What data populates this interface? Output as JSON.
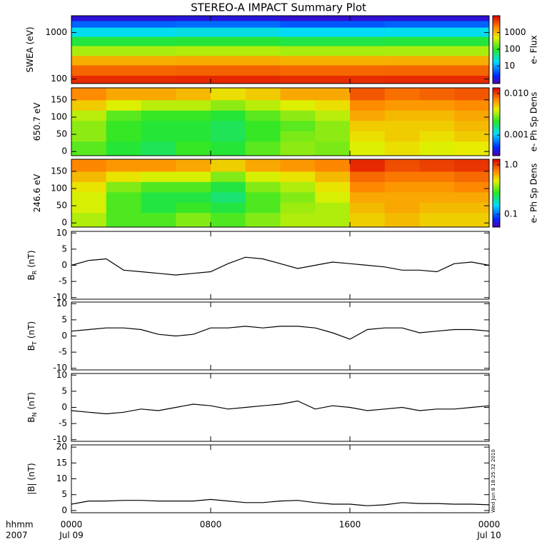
{
  "title": "STEREO-A IMPACT Summary Plot",
  "stamp": "Wed Jun  8 18:25:32 2010",
  "time_axis": {
    "label": "hhmm",
    "year": "2007"
  },
  "chart_data": [
    {
      "type": "heatmap",
      "ylabel": "SWEA (eV)",
      "ylog": true,
      "ylim": [
        80,
        2300
      ],
      "yticks": [
        100,
        1000
      ],
      "xlim": [
        0,
        24
      ],
      "xticks": [
        0,
        8,
        16,
        24
      ],
      "x_edges": [
        0,
        6,
        12,
        18,
        24
      ],
      "y_edges": [
        80,
        120,
        200,
        320,
        520,
        820,
        1300,
        1800,
        2300
      ],
      "z": [
        [
          6000,
          6200,
          5800,
          6000
        ],
        [
          3000,
          3100,
          2900,
          3000
        ],
        [
          1200,
          1250,
          1150,
          1200
        ],
        [
          300,
          320,
          290,
          300
        ],
        [
          80,
          85,
          75,
          80
        ],
        [
          20,
          22,
          19,
          20
        ],
        [
          5,
          5.5,
          4.5,
          5
        ],
        [
          1.5,
          1.6,
          1.4,
          1.5
        ]
      ],
      "clabel": "e- Flux",
      "clog": true,
      "clim": [
        0.9,
        10000
      ],
      "cticks": [
        10,
        100,
        1000
      ]
    },
    {
      "type": "heatmap",
      "ylabel": "650.7 eV",
      "ylim": [
        -12,
        185
      ],
      "yticks": [
        0,
        50,
        100,
        150
      ],
      "xlim": [
        0,
        24
      ],
      "xticks": [
        0,
        8,
        16,
        24
      ],
      "x_edges": [
        0,
        2,
        4,
        6,
        8,
        10,
        12,
        14,
        16,
        18,
        20,
        22,
        24
      ],
      "y_edges": [
        -12,
        30,
        60,
        90,
        120,
        150,
        185
      ],
      "z": [
        [
          0.0025,
          0.002,
          0.0018,
          0.0022,
          0.002,
          0.0025,
          0.003,
          0.0028,
          0.004,
          0.0045,
          0.004,
          0.0042
        ],
        [
          0.003,
          0.0022,
          0.002,
          0.002,
          0.0018,
          0.0022,
          0.0028,
          0.003,
          0.0045,
          0.005,
          0.0045,
          0.005
        ],
        [
          0.003,
          0.0022,
          0.002,
          0.002,
          0.0018,
          0.0022,
          0.0025,
          0.003,
          0.005,
          0.005,
          0.005,
          0.0055
        ],
        [
          0.0035,
          0.0025,
          0.0022,
          0.0022,
          0.002,
          0.0025,
          0.003,
          0.0035,
          0.006,
          0.0055,
          0.0055,
          0.006
        ],
        [
          0.005,
          0.004,
          0.0035,
          0.0035,
          0.003,
          0.0035,
          0.004,
          0.0045,
          0.007,
          0.0065,
          0.0065,
          0.007
        ],
        [
          0.007,
          0.006,
          0.006,
          0.0055,
          0.0045,
          0.005,
          0.006,
          0.006,
          0.009,
          0.008,
          0.0085,
          0.009
        ]
      ],
      "clabel": "e- Ph Sp Dens",
      "clog": true,
      "clim": [
        0.00032,
        0.0137
      ],
      "cticks": [
        {
          "value": 0.001,
          "label": "0.001"
        },
        {
          "value": 0.01,
          "label": "0.010"
        }
      ]
    },
    {
      "type": "heatmap",
      "ylabel": "246.6 eV",
      "ylim": [
        -12,
        185
      ],
      "yticks": [
        0,
        50,
        100,
        150
      ],
      "xlim": [
        0,
        24
      ],
      "xticks": [
        0,
        8,
        16,
        24
      ],
      "x_edges": [
        0,
        2,
        4,
        6,
        8,
        10,
        12,
        14,
        16,
        18,
        20,
        22,
        24
      ],
      "y_edges": [
        -12,
        30,
        60,
        90,
        120,
        150,
        185
      ],
      "z": [
        [
          0.4,
          0.3,
          0.3,
          0.35,
          0.3,
          0.35,
          0.4,
          0.4,
          0.55,
          0.6,
          0.55,
          0.55
        ],
        [
          0.45,
          0.3,
          0.25,
          0.28,
          0.25,
          0.3,
          0.38,
          0.4,
          0.6,
          0.65,
          0.6,
          0.6
        ],
        [
          0.45,
          0.3,
          0.25,
          0.25,
          0.22,
          0.3,
          0.35,
          0.45,
          0.65,
          0.65,
          0.65,
          0.65
        ],
        [
          0.5,
          0.35,
          0.3,
          0.3,
          0.25,
          0.35,
          0.4,
          0.5,
          0.75,
          0.7,
          0.7,
          0.75
        ],
        [
          0.6,
          0.5,
          0.45,
          0.45,
          0.35,
          0.45,
          0.5,
          0.6,
          0.85,
          0.8,
          0.8,
          0.85
        ],
        [
          0.75,
          0.7,
          0.7,
          0.65,
          0.55,
          0.65,
          0.7,
          0.75,
          1.1,
          0.95,
          1.0,
          1.05
        ]
      ],
      "clabel": "e- Ph Sp Dens",
      "clog": true,
      "clim": [
        0.055,
        1.3
      ],
      "cticks": [
        0.1,
        {
          "value": 1,
          "label": "1.0"
        }
      ]
    },
    {
      "type": "line",
      "ylabel": "B",
      "ylabel_sub": "R",
      "ylabel_unit": "(nT)",
      "ylim": [
        -10.5,
        10.5
      ],
      "yticks": [
        -10,
        -5,
        0,
        5,
        10
      ],
      "xlim": [
        0,
        24
      ],
      "xticks": [
        0,
        8,
        16,
        24
      ],
      "color": "#000000",
      "x": [
        0,
        1,
        2,
        3,
        4,
        5,
        6,
        7,
        8,
        9,
        10,
        11,
        12,
        13,
        14,
        15,
        16,
        17,
        18,
        19,
        20,
        21,
        22,
        23,
        24
      ],
      "values": [
        0,
        1.5,
        2,
        -1.5,
        -2,
        -2.5,
        -3,
        -2.5,
        -2,
        0.5,
        2.5,
        2,
        0.5,
        -1,
        0,
        1,
        0.5,
        0,
        -0.5,
        -1.5,
        -1.5,
        -2,
        0.5,
        1,
        0
      ]
    },
    {
      "type": "line",
      "ylabel": "B",
      "ylabel_sub": "T",
      "ylabel_unit": "(nT)",
      "ylim": [
        -10.5,
        10.5
      ],
      "yticks": [
        -10,
        -5,
        0,
        5,
        10
      ],
      "xlim": [
        0,
        24
      ],
      "xticks": [
        0,
        8,
        16,
        24
      ],
      "color": "#000000",
      "x": [
        0,
        1,
        2,
        3,
        4,
        5,
        6,
        7,
        8,
        9,
        10,
        11,
        12,
        13,
        14,
        15,
        16,
        17,
        18,
        19,
        20,
        21,
        22,
        23,
        24
      ],
      "values": [
        1.5,
        2,
        2.5,
        2.5,
        2,
        0.5,
        0,
        0.5,
        2.5,
        2.5,
        3,
        2.5,
        3,
        3,
        2.5,
        1,
        -1,
        2,
        2.5,
        2.5,
        1,
        1.5,
        2,
        2,
        1.5
      ]
    },
    {
      "type": "line",
      "ylabel": "B",
      "ylabel_sub": "N",
      "ylabel_unit": "(nT)",
      "ylim": [
        -10.5,
        10.5
      ],
      "yticks": [
        -10,
        -5,
        0,
        5,
        10
      ],
      "xlim": [
        0,
        24
      ],
      "xticks": [
        0,
        8,
        16,
        24
      ],
      "color": "#000000",
      "x": [
        0,
        1,
        2,
        3,
        4,
        5,
        6,
        7,
        8,
        9,
        10,
        11,
        12,
        13,
        14,
        15,
        16,
        17,
        18,
        19,
        20,
        21,
        22,
        23,
        24
      ],
      "values": [
        -1,
        -1.5,
        -2,
        -1.5,
        -0.5,
        -1,
        0,
        1,
        0.5,
        -0.5,
        0,
        0.5,
        1,
        2,
        -0.5,
        0.5,
        0,
        -1,
        -0.5,
        0,
        -1,
        -0.5,
        -0.5,
        0,
        0.5
      ]
    },
    {
      "type": "line",
      "ylabel": "|B| (nT)",
      "ylim": [
        -0.7,
        20.7
      ],
      "yticks": [
        0,
        5,
        10,
        15,
        20
      ],
      "xlim": [
        0,
        24
      ],
      "color": "#000000",
      "xticks": [
        {
          "value": 0,
          "label": "0000"
        },
        {
          "value": 8,
          "label": "0800"
        },
        {
          "value": 16,
          "label": "1600"
        },
        {
          "value": 24,
          "label": "0000"
        }
      ],
      "xtick_dates": [
        {
          "value": 0,
          "label": "Jul 09"
        },
        {
          "value": 24,
          "label": "Jul 10"
        }
      ],
      "x": [
        0,
        1,
        2,
        3,
        4,
        5,
        6,
        7,
        8,
        9,
        10,
        11,
        12,
        13,
        14,
        15,
        16,
        17,
        18,
        19,
        20,
        21,
        22,
        23,
        24
      ],
      "values": [
        2,
        3,
        3,
        3.2,
        3.2,
        3,
        3,
        3,
        3.5,
        3,
        2.5,
        2.5,
        3,
        3.2,
        2.5,
        2,
        2,
        1.5,
        1.8,
        2.5,
        2.2,
        2.2,
        2,
        2,
        1.8
      ]
    }
  ]
}
